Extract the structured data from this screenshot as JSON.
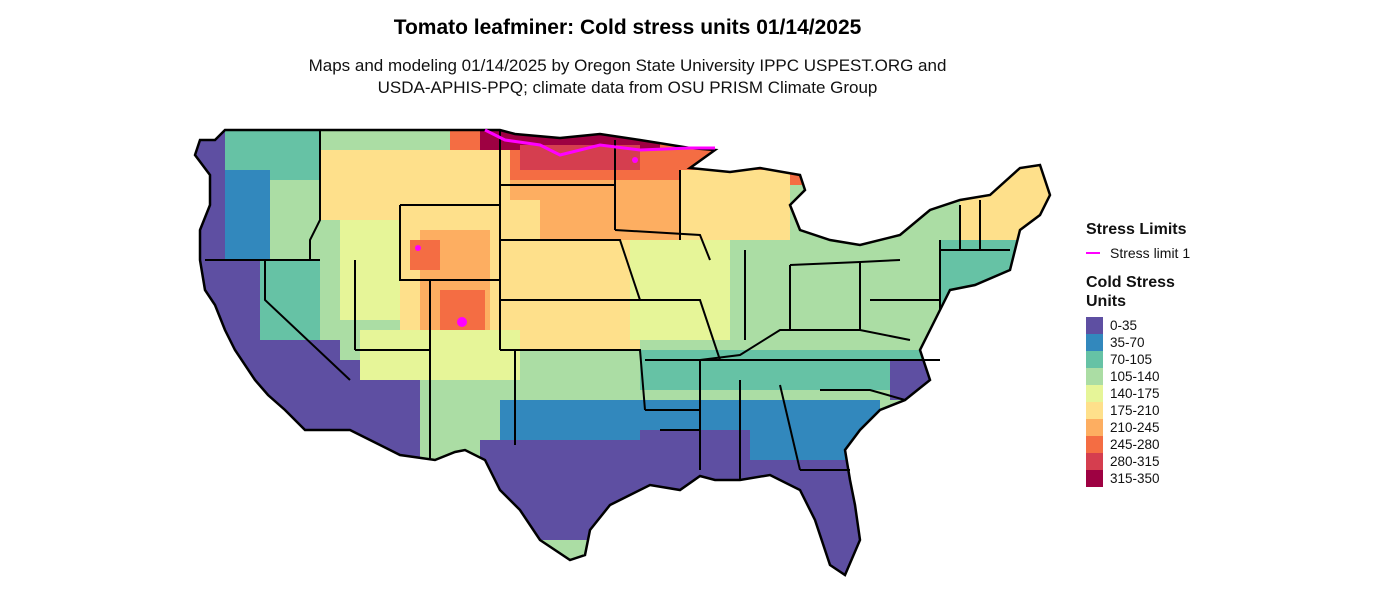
{
  "title": "Tomato leafminer: Cold stress units 01/14/2025",
  "subtitle_line1": "Maps and modeling 01/14/2025 by Oregon State University IPPC USPEST.ORG and",
  "subtitle_line2": "USDA-APHIS-PPQ; climate data from OSU PRISM Climate Group",
  "legend": {
    "limits_title": "Stress Limits",
    "limits": [
      {
        "label": "Stress limit 1",
        "color": "#ff00ff"
      }
    ],
    "units_title": "Cold Stress Units",
    "bins": [
      {
        "label": "0-35",
        "color": "#5e4fa2"
      },
      {
        "label": "35-70",
        "color": "#3288bd"
      },
      {
        "label": "70-105",
        "color": "#66c2a5"
      },
      {
        "label": "105-140",
        "color": "#abdda4"
      },
      {
        "label": "140-175",
        "color": "#e6f598"
      },
      {
        "label": "175-210",
        "color": "#fee08b"
      },
      {
        "label": "210-245",
        "color": "#fdae61"
      },
      {
        "label": "245-280",
        "color": "#f46d43"
      },
      {
        "label": "280-315",
        "color": "#d53e4f"
      },
      {
        "label": "315-350",
        "color": "#9e0142"
      }
    ]
  }
}
